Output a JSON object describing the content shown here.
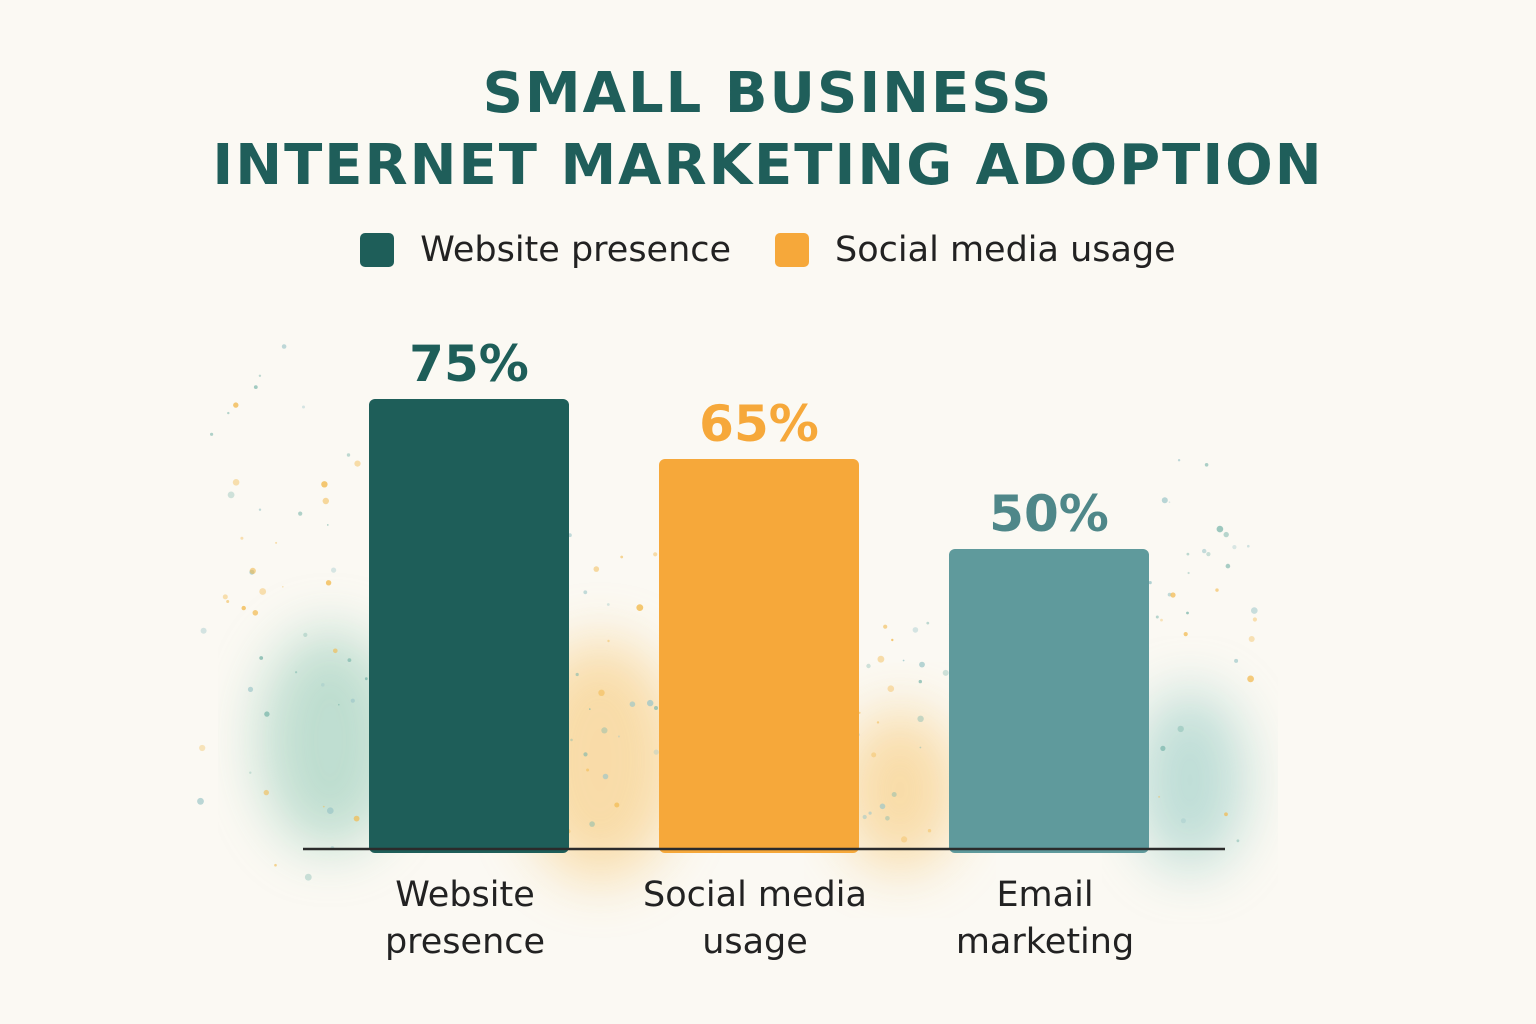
{
  "chart_data": {
    "type": "bar",
    "title_lines": [
      "SMALL BUSINESS",
      "INTERNET MARKETING ADOPTION"
    ],
    "legend": [
      {
        "label": "Website presence",
        "color": "#1e5e59"
      },
      {
        "label": "Social media usage",
        "color": "#f6a83a"
      }
    ],
    "categories": [
      {
        "lines": [
          "Website",
          "presence"
        ]
      },
      {
        "lines": [
          "Social media",
          "usage"
        ]
      },
      {
        "lines": [
          "Email",
          "marketing"
        ]
      }
    ],
    "values": [
      75,
      65,
      50
    ],
    "value_labels": [
      "75%",
      "65%",
      "50%"
    ],
    "bar_colors": [
      "#1e5e59",
      "#f6a83a",
      "#5f9a9c"
    ],
    "label_colors": [
      "#1e5e59",
      "#f6a83a",
      "#4f8789"
    ],
    "ylim": [
      0,
      100
    ],
    "grid": false
  }
}
